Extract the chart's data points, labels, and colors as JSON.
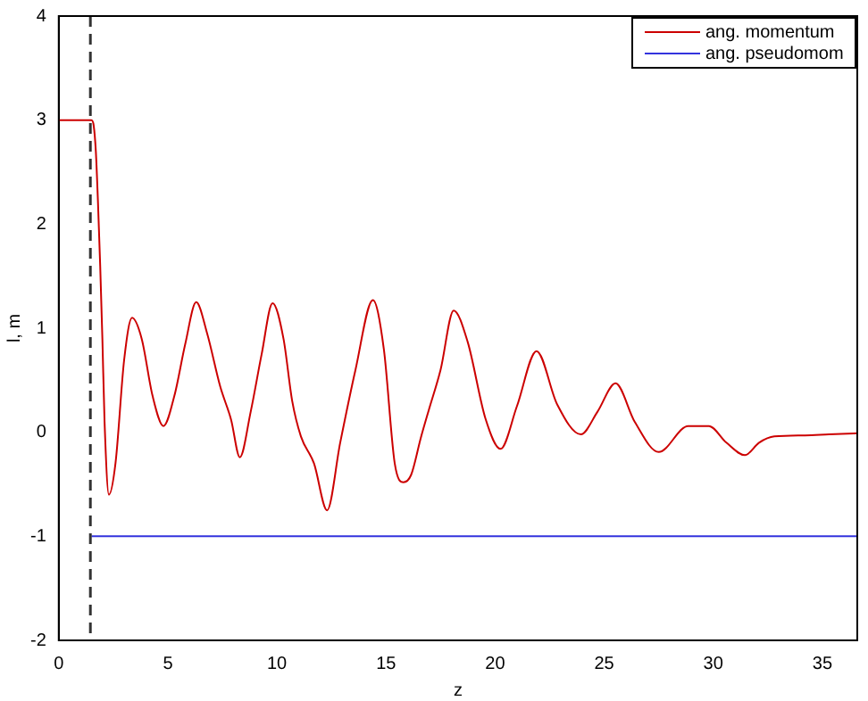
{
  "chart_data": {
    "type": "line",
    "xlabel": "z",
    "ylabel": "l, m",
    "xlim": [
      0,
      36.6
    ],
    "ylim": [
      -2,
      4
    ],
    "xticks": [
      0,
      5,
      10,
      15,
      20,
      25,
      30,
      35
    ],
    "yticks": [
      -2,
      -1,
      0,
      1,
      2,
      3,
      4
    ],
    "grid": false,
    "legend": "top right",
    "marker": "none",
    "line_style": "solid",
    "series": [
      {
        "name": "ang. momentum",
        "color": "#cc0000",
        "x": [
          0,
          0.5,
          1,
          1.5,
          1.6,
          1.7,
          1.8,
          1.9,
          2.0,
          2.1,
          2.3,
          2.6,
          3.0,
          3.36,
          3.8,
          4.3,
          4.8,
          5.3,
          5.8,
          6.3,
          6.8,
          7.4,
          7.9,
          8.3,
          8.8,
          9.3,
          9.8,
          10.3,
          10.7,
          11.1,
          11.7,
          12.3,
          12.9,
          13.6,
          14.4,
          14.9,
          15.4,
          15.8,
          16.15,
          16.6,
          16.97,
          17.5,
          18.1,
          18.74,
          19.56,
          20.25,
          21.0,
          21.9,
          22.84,
          23.93,
          24.7,
          25.52,
          26.4,
          27.5,
          28.85,
          29.8,
          30.6,
          31.45,
          32.1,
          32.8,
          34.2,
          35.3,
          36.6
        ],
        "values": [
          3.0,
          3.0,
          3.0,
          3.0,
          2.95,
          2.7,
          2.2,
          1.6,
          0.9,
          0.1,
          -0.6,
          -0.3,
          0.7,
          1.1,
          0.9,
          0.35,
          0.06,
          0.35,
          0.85,
          1.25,
          0.95,
          0.44,
          0.12,
          -0.24,
          0.2,
          0.75,
          1.24,
          0.9,
          0.3,
          -0.04,
          -0.3,
          -0.75,
          -0.1,
          0.6,
          1.27,
          0.8,
          -0.3,
          -0.48,
          -0.41,
          -0.05,
          0.22,
          0.6,
          1.17,
          0.87,
          0.13,
          -0.16,
          0.25,
          0.78,
          0.27,
          -0.02,
          0.2,
          0.47,
          0.1,
          -0.19,
          0.06,
          0.06,
          -0.1,
          -0.22,
          -0.1,
          -0.04,
          -0.03,
          -0.02,
          -0.01
        ]
      },
      {
        "name": "ang. pseudomom",
        "color": "#3333dd",
        "x": [
          1.5,
          36.6
        ],
        "values": [
          -1,
          -1
        ]
      }
    ],
    "ref_lines": [
      {
        "axis": "x",
        "value": 1.45,
        "color": "#333333",
        "line_style": "dashed"
      }
    ]
  }
}
